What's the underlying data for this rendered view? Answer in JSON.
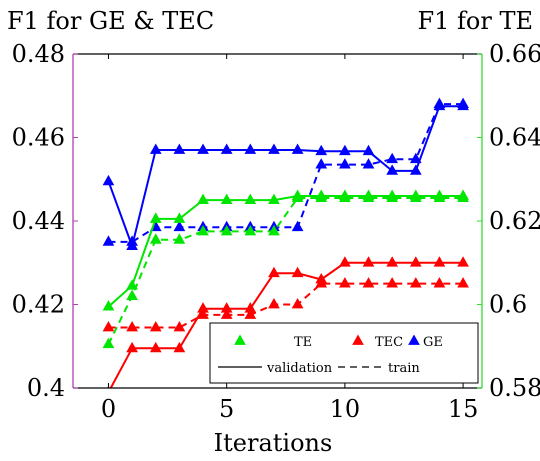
{
  "chart_data": {
    "type": "line",
    "xlabel": "Iterations",
    "ylabel_left": "F1 for GE & TEC",
    "ylabel_right": "F1 for TE",
    "xlim": [
      -1.5,
      15.8
    ],
    "ylim_left": [
      0.4,
      0.48
    ],
    "ylim_right": [
      0.58,
      0.66
    ],
    "x_ticks": [
      0,
      5,
      10,
      15
    ],
    "y_ticks_left": [
      0.4,
      0.42,
      0.44,
      0.46,
      0.48
    ],
    "y_ticks_right": [
      0.58,
      0.6,
      0.62,
      0.64,
      0.66
    ],
    "grid": false,
    "legend_placement": "bottom-right",
    "legend": {
      "marker_entries": [
        "TE",
        "TEC",
        "GE"
      ],
      "style_entries": [
        "validation",
        "train"
      ]
    },
    "colors": {
      "TE": "#00e600",
      "TEC": "#ff0000",
      "GE": "#0000ff",
      "left_axis": "#b040b0",
      "right_axis": "#33dd33"
    },
    "x": [
      0,
      1,
      2,
      3,
      4,
      5,
      6,
      7,
      8,
      9,
      10,
      11,
      12,
      13,
      14,
      15
    ],
    "series": [
      {
        "name": "GE",
        "style": "validation",
        "axis": "left",
        "values": [
          0.4495,
          0.434,
          0.457,
          0.457,
          0.457,
          0.457,
          0.457,
          0.457,
          0.457,
          0.4567,
          0.4567,
          0.4567,
          0.452,
          0.452,
          0.4675,
          0.4675
        ]
      },
      {
        "name": "GE",
        "style": "train",
        "axis": "left",
        "values": [
          0.435,
          0.435,
          0.4385,
          0.4385,
          0.4385,
          0.4385,
          0.4385,
          0.4385,
          0.4385,
          0.4535,
          0.4535,
          0.4535,
          0.4548,
          0.4548,
          0.468,
          0.468
        ]
      },
      {
        "name": "TE",
        "style": "validation",
        "axis": "right",
        "values": [
          0.5995,
          0.6045,
          0.6205,
          0.6205,
          0.625,
          0.625,
          0.625,
          0.625,
          0.626,
          0.626,
          0.626,
          0.626,
          0.626,
          0.626,
          0.626,
          0.626
        ]
      },
      {
        "name": "TE",
        "style": "train",
        "axis": "right",
        "values": [
          0.5905,
          0.602,
          0.6155,
          0.6155,
          0.6175,
          0.6175,
          0.6175,
          0.6175,
          0.6255,
          0.6255,
          0.6255,
          0.6255,
          0.6255,
          0.6255,
          0.6255,
          0.6255
        ]
      },
      {
        "name": "TEC",
        "style": "validation",
        "axis": "left",
        "values": [
          0.399,
          0.4095,
          0.4095,
          0.4095,
          0.419,
          0.419,
          0.419,
          0.4275,
          0.4275,
          0.426,
          0.43,
          0.43,
          0.43,
          0.43,
          0.43,
          0.43
        ]
      },
      {
        "name": "TEC",
        "style": "train",
        "axis": "left",
        "values": [
          0.4145,
          0.4145,
          0.4145,
          0.4145,
          0.4175,
          0.4175,
          0.4175,
          0.42,
          0.42,
          0.425,
          0.425,
          0.425,
          0.425,
          0.425,
          0.425,
          0.425
        ]
      }
    ]
  }
}
